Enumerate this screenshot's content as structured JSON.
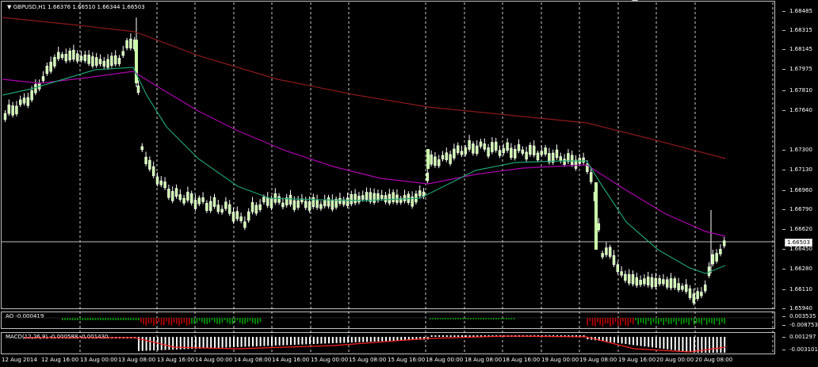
{
  "chart": {
    "symbol_label": "GBPUSD,H1  1.66376 1.66510 1.66344 1.66503",
    "current_price": "1.66503",
    "price_ticks": [
      "1.68485",
      "1.68315",
      "1.68145",
      "1.67975",
      "1.67810",
      "1.67640",
      "1.67300",
      "1.67130",
      "1.66960",
      "1.66790",
      "1.66620",
      "1.66450",
      "1.66280",
      "1.66110",
      "1.65940"
    ],
    "ao_label": "AO -0.000419",
    "ao_ticks": [
      "0.003535",
      "-0.008753"
    ],
    "macd_label": "MACD(12,26,9) -0.000588 -0.001430",
    "macd_ticks": [
      "0.001297",
      "-0.003101"
    ],
    "time_labels": [
      "12 Aug 2014",
      "12 Aug 16:00",
      "13 Aug 00:00",
      "13 Aug 08:00",
      "13 Aug 16:00",
      "14 Aug 00:00",
      "14 Aug 08:00",
      "14 Aug 16:00",
      "15 Aug 00:00",
      "15 Aug 08:00",
      "15 Aug 16:00",
      "18 Aug 00:00",
      "18 Aug 08:00",
      "18 Aug 16:00",
      "19 Aug 00:00",
      "19 Aug 08:00",
      "19 Aug 16:00",
      "20 Aug 00:00",
      "20 Aug 08:00"
    ],
    "colors": {
      "background": "#000000",
      "candle_bull": "#ccffaa",
      "candle_wick": "#ffffff",
      "ma_slow": "#8b1a1a",
      "ma_mid": "#b000b0",
      "ma_fast": "#20a070",
      "ao_up": "#00a000",
      "ao_down": "#c00000",
      "macd_hist": "#ffffff",
      "macd_signal": "#ff2020",
      "grid": "#ffffff"
    }
  }
}
